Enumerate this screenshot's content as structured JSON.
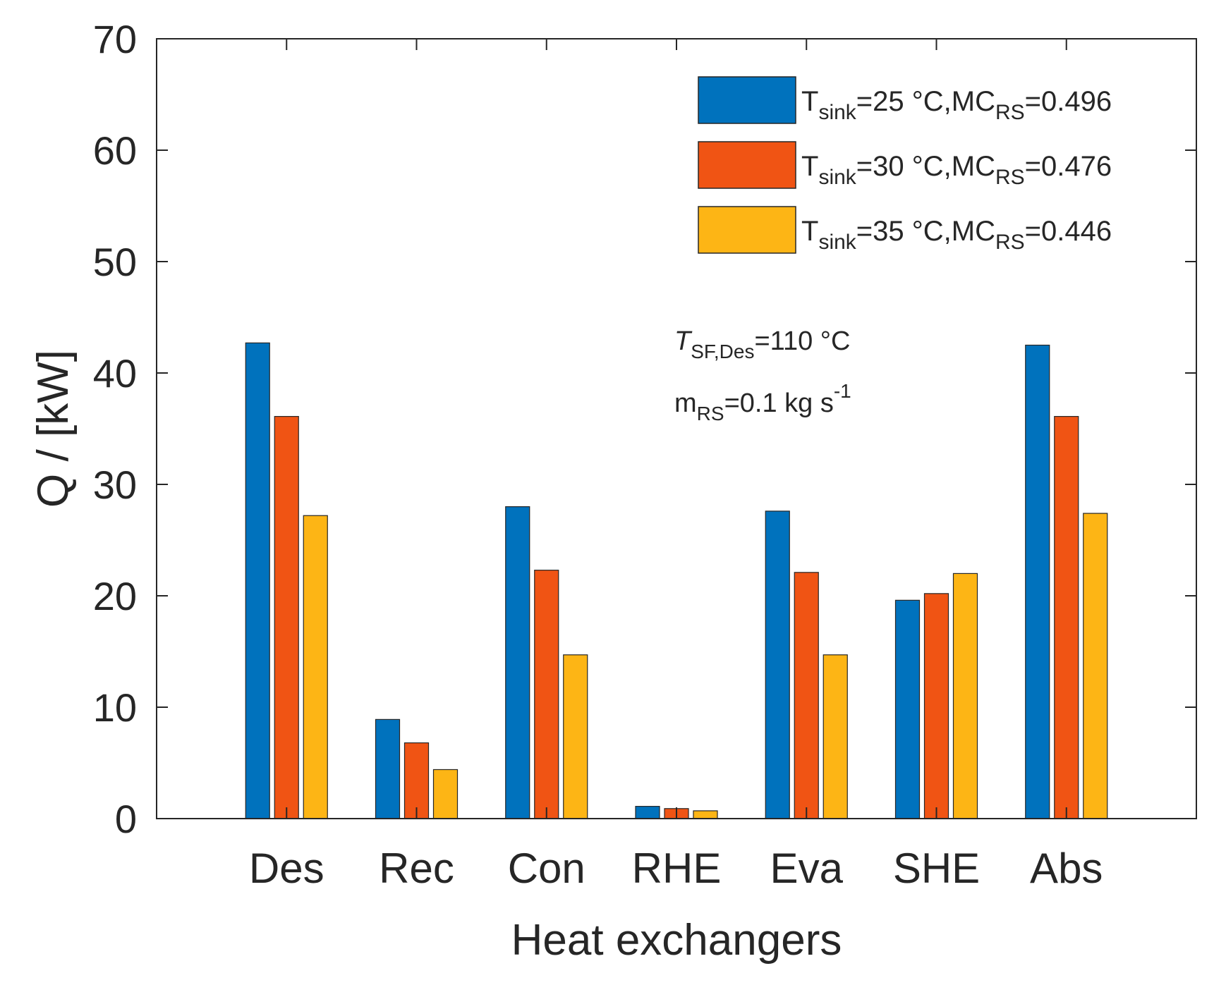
{
  "chart_data": {
    "type": "bar",
    "title": "",
    "xlabel": "Heat exchangers",
    "ylabel": "Q / [kW]",
    "ylim": [
      0,
      70
    ],
    "yticks": [
      0,
      10,
      20,
      30,
      40,
      50,
      60,
      70
    ],
    "grid": false,
    "legend_position": "top-right",
    "categories": [
      "Des",
      "Rec",
      "Con",
      "RHE",
      "Eva",
      "SHE",
      "Abs"
    ],
    "series": [
      {
        "name": "T_sink=25 °C,MC_RS=0.496",
        "label_main": "T",
        "label_sub1": "sink",
        "label_mid": "=25 °C,MC",
        "label_sub2": "RS",
        "label_end": "=0.496",
        "color": "#0072BD",
        "values": [
          42.7,
          8.9,
          28.0,
          1.1,
          27.6,
          19.6,
          42.5
        ]
      },
      {
        "name": "T_sink=30 °C,MC_RS=0.476",
        "label_main": "T",
        "label_sub1": "sink",
        "label_mid": "=30 °C,MC",
        "label_sub2": "RS",
        "label_end": "=0.476",
        "color": "#F05414",
        "values": [
          36.1,
          6.8,
          22.3,
          0.9,
          22.1,
          20.2,
          36.1
        ]
      },
      {
        "name": "T_sink=35 °C,MC_RS=0.446",
        "label_main": "T",
        "label_sub1": "sink",
        "label_mid": "=35 °C,MC",
        "label_sub2": "RS",
        "label_end": "=0.446",
        "color": "#FDB515",
        "values": [
          27.2,
          4.4,
          14.7,
          0.7,
          14.7,
          22.0,
          27.4
        ]
      }
    ],
    "annotations": [
      {
        "main": "T",
        "sub": "SF,Des",
        "rest": "=110 °C"
      },
      {
        "main": "m",
        "sub": "RS",
        "rest": "=0.1 kg s",
        "sup": "-1"
      }
    ]
  }
}
